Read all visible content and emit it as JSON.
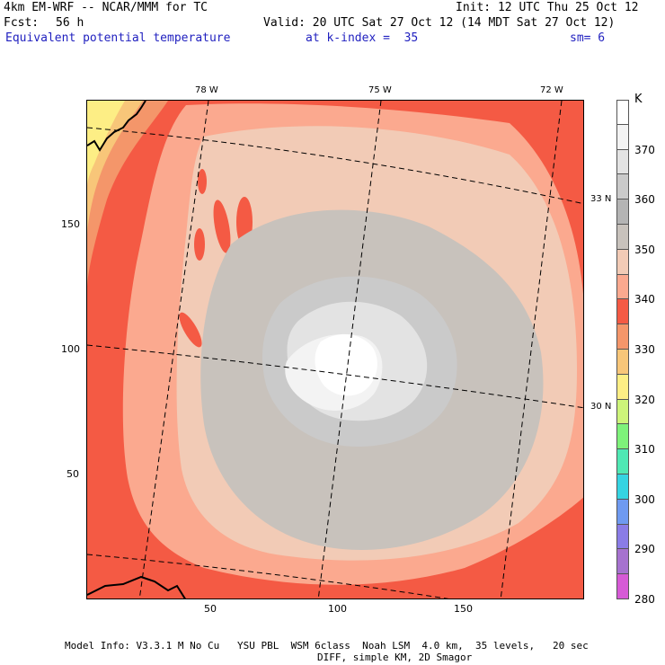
{
  "header": {
    "model": "4km EM-WRF -- NCAR/MMM for TC",
    "init": "Init: 12 UTC Thu 25 Oct 12",
    "fcst_label": "Fcst:",
    "fcst_value": "56 h",
    "valid": "Valid: 20 UTC Sat 27 Oct 12 (14 MDT Sat 27 Oct 12)",
    "field": "Equivalent potential temperature",
    "kindex": "at k-index =  35",
    "sm": "sm= 6"
  },
  "axes": {
    "x_ticks": [
      "50",
      "100",
      "150"
    ],
    "y_ticks": [
      "150",
      "100",
      "50"
    ],
    "lon_labels": [
      "78 W",
      "75 W",
      "72 W"
    ],
    "lat_labels": [
      "33 N",
      "30 N"
    ]
  },
  "colorbar": {
    "unit": "K",
    "labels": [
      "370",
      "360",
      "350",
      "340",
      "330",
      "320",
      "310",
      "300",
      "290",
      "280"
    ],
    "colors": [
      "#ffffff",
      "#f3f3f3",
      "#e3e3e3",
      "#cacaca",
      "#b4b4b4",
      "#c8c2bc",
      "#f2cbb6",
      "#fba98f",
      "#f45a44",
      "#f4966a",
      "#f8c679",
      "#fdee85",
      "#cdf47a",
      "#7ef27a",
      "#4fe8b4",
      "#35d4e2",
      "#6f9af0",
      "#8a7ce6",
      "#a672cf",
      "#d65ad6"
    ]
  },
  "footer": {
    "line1": "Model Info: V3.3.1 M No Cu   YSU PBL  WSM 6class  Noah LSM  4.0 km,  35 levels,   20 sec",
    "line2": "DIFF, simple KM, 2D Smagor"
  }
}
